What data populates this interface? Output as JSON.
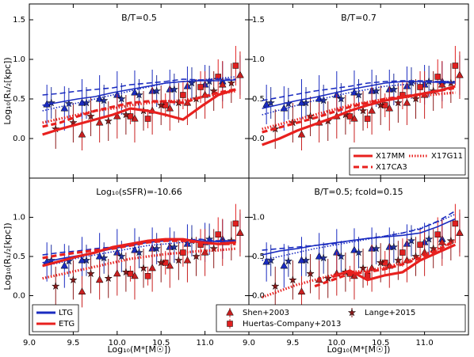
{
  "x_label": "Log₁₀(M*[M☉])",
  "y_label": "Log₁₀(R₁/₂[kpc])",
  "observations": [
    {
      "name": "Shen+2003",
      "marker": "triangle",
      "groups": [
        {
          "color": "#1a2bc0",
          "x": [
            9.2,
            9.4,
            9.6,
            9.8,
            10.0,
            10.2,
            10.4,
            10.6,
            10.8,
            11.0,
            11.2,
            11.4
          ],
          "values": [
            0.43,
            0.38,
            0.45,
            0.5,
            0.55,
            0.58,
            0.6,
            0.62,
            0.66,
            0.68,
            0.72,
            0.8
          ],
          "errors": [
            0.25,
            0.28,
            0.3,
            0.3,
            0.3,
            0.28,
            0.27,
            0.25,
            0.25,
            0.25,
            0.25,
            0.25
          ]
        },
        {
          "color": "#c82020",
          "x": [
            9.6,
            9.8,
            10.0,
            10.2,
            10.4,
            10.6,
            10.8,
            11.0,
            11.2,
            11.4
          ],
          "values": [
            0.05,
            0.2,
            0.28,
            0.25,
            0.35,
            0.38,
            0.45,
            0.55,
            0.68,
            0.8
          ],
          "errors": [
            0.2,
            0.25,
            0.28,
            0.3,
            0.3,
            0.28,
            0.28,
            0.3,
            0.3,
            0.3
          ]
        }
      ]
    },
    {
      "name": "Huertas-Company+2013",
      "marker": "square",
      "groups": [
        {
          "color": "#e02020",
          "x": [
            10.15,
            10.35,
            10.55,
            10.75,
            10.95,
            11.15,
            11.35
          ],
          "values": [
            0.28,
            0.25,
            0.42,
            0.55,
            0.65,
            0.78,
            0.92
          ],
          "errors": [
            0.1,
            0.12,
            0.15,
            0.18,
            0.2,
            0.22,
            0.25
          ]
        }
      ]
    },
    {
      "name": "Lange+2015",
      "marker": "star",
      "groups": [
        {
          "color": "#2030a0",
          "x": [
            9.25,
            9.45,
            9.65,
            9.85,
            10.05,
            10.25,
            10.45,
            10.65,
            10.85,
            11.05
          ],
          "values": [
            0.45,
            0.44,
            0.45,
            0.48,
            0.5,
            0.55,
            0.6,
            0.62,
            0.7,
            0.72
          ],
          "errors": [
            0.2,
            0.2,
            0.2,
            0.2,
            0.2,
            0.2,
            0.2,
            0.2,
            0.2,
            0.2
          ]
        },
        {
          "color": "#8b1a1a",
          "x": [
            9.3,
            9.5,
            9.7,
            9.9,
            10.1,
            10.3,
            10.5,
            10.7,
            10.9,
            11.1,
            11.3
          ],
          "values": [
            0.12,
            0.2,
            0.28,
            0.22,
            0.3,
            0.35,
            0.42,
            0.45,
            0.5,
            0.6,
            0.7
          ],
          "errors": [
            0.25,
            0.25,
            0.25,
            0.25,
            0.25,
            0.25,
            0.25,
            0.25,
            0.25,
            0.25,
            0.25
          ]
        }
      ]
    }
  ],
  "chart_data": [
    {
      "type": "line",
      "title": "B/T=0.5",
      "xlim": [
        9.0,
        11.5
      ],
      "ylim": [
        -0.5,
        1.7
      ],
      "xticks": [
        {
          "value": 9.0,
          "label": "9.0"
        },
        9.5,
        {
          "value": 10.0,
          "label": "10.0"
        },
        10.5,
        {
          "value": 11.0,
          "label": "11.0"
        }
      ],
      "yticks": [
        {
          "value": 0,
          "label": "0.0"
        },
        0.5,
        {
          "value": 1,
          "label": "1.0"
        },
        1.5
      ],
      "x": [
        9.15,
        9.35,
        9.55,
        9.75,
        9.95,
        10.15,
        10.35,
        10.55,
        10.75,
        10.95,
        11.15,
        11.35
      ],
      "series": [
        {
          "color": "#1a2bc0",
          "style": "solid",
          "values": [
            0.42,
            0.46,
            0.5,
            0.53,
            0.58,
            0.62,
            0.66,
            0.7,
            0.72,
            0.73,
            0.73,
            0.74
          ]
        },
        {
          "color": "#1a2bc0",
          "style": "dashed",
          "values": [
            0.55,
            0.57,
            0.6,
            0.62,
            0.64,
            0.68,
            0.7,
            0.72,
            0.75,
            0.74,
            0.75,
            0.75
          ]
        },
        {
          "color": "#1a2bc0",
          "style": "dotted",
          "values": [
            0.35,
            0.4,
            0.45,
            0.5,
            0.55,
            0.6,
            0.65,
            0.7,
            0.72,
            0.74,
            0.76,
            0.78
          ]
        },
        {
          "color": "#e8201e",
          "style": "solid",
          "values": [
            0.05,
            0.12,
            0.18,
            0.24,
            0.3,
            0.38,
            0.35,
            0.3,
            0.24,
            0.4,
            0.55,
            0.62
          ]
        },
        {
          "color": "#e8201e",
          "style": "dashed",
          "values": [
            0.15,
            0.2,
            0.28,
            0.35,
            0.4,
            0.45,
            0.47,
            0.47,
            0.45,
            0.52,
            0.58,
            0.62
          ]
        },
        {
          "color": "#e8201e",
          "style": "dotted",
          "values": [
            0.2,
            0.25,
            0.3,
            0.35,
            0.38,
            0.42,
            0.45,
            0.47,
            0.48,
            0.52,
            0.56,
            0.6
          ]
        }
      ]
    },
    {
      "type": "line",
      "title": "B/T=0.7",
      "xlim": [
        9.0,
        11.5
      ],
      "ylim": [
        -0.5,
        1.7
      ],
      "xticks": [
        {
          "value": 9.0,
          "label": "9.0"
        },
        9.5,
        {
          "value": 10.0,
          "label": "10.0"
        },
        10.5,
        {
          "value": 11.0,
          "label": "11.0"
        }
      ],
      "yticks": [
        {
          "value": 0,
          "label": "0.0"
        },
        0.5,
        {
          "value": 1,
          "label": "1.0"
        },
        1.5
      ],
      "x": [
        9.15,
        9.35,
        9.55,
        9.75,
        9.95,
        10.15,
        10.35,
        10.55,
        10.75,
        10.95,
        11.15,
        11.35
      ],
      "series": [
        {
          "color": "#1a2bc0",
          "style": "solid",
          "values": [
            0.38,
            0.43,
            0.48,
            0.52,
            0.57,
            0.62,
            0.66,
            0.7,
            0.72,
            0.72,
            0.71,
            0.7
          ]
        },
        {
          "color": "#1a2bc0",
          "style": "dashed",
          "values": [
            0.48,
            0.52,
            0.56,
            0.6,
            0.63,
            0.66,
            0.7,
            0.72,
            0.73,
            0.73,
            0.72,
            0.72
          ]
        },
        {
          "color": "#1a2bc0",
          "style": "dotted",
          "values": [
            0.3,
            0.36,
            0.42,
            0.48,
            0.53,
            0.58,
            0.62,
            0.66,
            0.68,
            0.7,
            0.72,
            0.72
          ]
        },
        {
          "color": "#e8201e",
          "style": "solid",
          "values": [
            -0.08,
            0.0,
            0.1,
            0.18,
            0.26,
            0.35,
            0.42,
            0.48,
            0.52,
            0.56,
            0.6,
            0.66
          ]
        },
        {
          "color": "#e8201e",
          "style": "dashed",
          "values": [
            0.08,
            0.14,
            0.2,
            0.26,
            0.33,
            0.4,
            0.45,
            0.5,
            0.53,
            0.56,
            0.6,
            0.64
          ]
        },
        {
          "color": "#e8201e",
          "style": "dotted",
          "values": [
            0.12,
            0.18,
            0.24,
            0.3,
            0.36,
            0.42,
            0.46,
            0.5,
            0.52,
            0.54,
            0.56,
            0.58
          ]
        }
      ],
      "legend": {
        "corner": "lower right",
        "entries": [
          {
            "label": "X17MM",
            "color": "#e8201e",
            "style": "solid"
          },
          {
            "label": "X17CA3",
            "color": "#e8201e",
            "style": "dashed"
          },
          {
            "label": "X17G11",
            "color": "#e8201e",
            "style": "dotted"
          }
        ]
      }
    },
    {
      "type": "line",
      "title": "Log₁₀(sSFR)=-10.66",
      "xlim": [
        9.0,
        11.5
      ],
      "ylim": [
        -0.5,
        1.5
      ],
      "xticks": [
        {
          "value": 9.0,
          "label": "9.0"
        },
        9.5,
        {
          "value": 10.0,
          "label": "10.0"
        },
        10.5,
        {
          "value": 11.0,
          "label": "11.0"
        }
      ],
      "yticks": [
        {
          "value": 0,
          "label": "0.0"
        },
        0.5,
        {
          "value": 1,
          "label": "1.0"
        }
      ],
      "x": [
        9.15,
        9.35,
        9.55,
        9.75,
        9.95,
        10.15,
        10.35,
        10.55,
        10.75,
        10.95,
        11.15,
        11.35
      ],
      "series": [
        {
          "color": "#1a2bc0",
          "style": "solid",
          "values": [
            0.42,
            0.47,
            0.51,
            0.55,
            0.6,
            0.64,
            0.68,
            0.7,
            0.72,
            0.7,
            0.69,
            0.7
          ]
        },
        {
          "color": "#1a2bc0",
          "style": "dashed",
          "values": [
            0.52,
            0.55,
            0.57,
            0.6,
            0.62,
            0.65,
            0.68,
            0.7,
            0.71,
            0.72,
            0.7,
            0.7
          ]
        },
        {
          "color": "#1a2bc0",
          "style": "dotted",
          "values": [
            0.38,
            0.42,
            0.48,
            0.52,
            0.56,
            0.6,
            0.64,
            0.66,
            0.68,
            0.68,
            0.7,
            0.7
          ]
        },
        {
          "color": "#e8201e",
          "style": "solid",
          "values": [
            0.38,
            0.44,
            0.5,
            0.55,
            0.62,
            0.66,
            0.7,
            0.72,
            0.72,
            0.68,
            0.66,
            0.68
          ]
        },
        {
          "color": "#e8201e",
          "style": "dashed",
          "values": [
            0.48,
            0.52,
            0.55,
            0.58,
            0.6,
            0.64,
            0.68,
            0.7,
            0.7,
            0.68,
            0.66,
            0.66
          ]
        },
        {
          "color": "#e8201e",
          "style": "dotted",
          "values": [
            0.22,
            0.27,
            0.32,
            0.37,
            0.42,
            0.47,
            0.5,
            0.53,
            0.55,
            0.57,
            0.58,
            0.6
          ]
        }
      ],
      "legend": {
        "corner": "lower left",
        "entries": [
          {
            "label": "LTG",
            "color": "#1a2bc0",
            "style": "solid"
          },
          {
            "label": "ETG",
            "color": "#e8201e",
            "style": "solid"
          }
        ]
      }
    },
    {
      "type": "line",
      "title": "B/T=0.5; fcold=0.15",
      "xlim": [
        9.0,
        11.5
      ],
      "ylim": [
        -0.5,
        1.5
      ],
      "xticks": [
        {
          "value": 9.0,
          "label": "9.0"
        },
        9.5,
        {
          "value": 10.0,
          "label": "10.0"
        },
        10.5,
        {
          "value": 11.0,
          "label": "11.0"
        }
      ],
      "yticks": [
        {
          "value": 0,
          "label": "0.0"
        },
        0.5,
        {
          "value": 1,
          "label": "1.0"
        }
      ],
      "x": [
        9.15,
        9.35,
        9.55,
        9.75,
        9.95,
        10.15,
        10.35,
        10.55,
        10.75,
        10.95,
        11.15,
        11.35
      ],
      "series": [
        {
          "color": "#1a2bc0",
          "style": "solid",
          "values": [
            0.52,
            0.57,
            0.6,
            0.64,
            0.67,
            0.7,
            0.73,
            0.75,
            0.77,
            0.8,
            0.88,
            0.98
          ]
        },
        {
          "color": "#1a2bc0",
          "style": "dashed",
          "values": [
            0.58,
            0.6,
            0.62,
            0.64,
            0.66,
            0.7,
            0.73,
            0.76,
            0.8,
            0.85,
            0.95,
            1.08
          ]
        },
        {
          "color": "#1a2bc0",
          "style": "dotted",
          "values": [
            0.45,
            0.5,
            0.55,
            0.6,
            0.64,
            0.68,
            0.72,
            0.76,
            0.8,
            0.86,
            0.94,
            1.04
          ]
        },
        {
          "color": "#e8201e",
          "style": "solid",
          "values": [
            null,
            null,
            null,
            null,
            0.24,
            0.32,
            0.2,
            0.26,
            0.3,
            0.45,
            0.55,
            0.65
          ]
        },
        {
          "color": "#e8201e",
          "style": "dashed",
          "values": [
            null,
            null,
            null,
            0.12,
            0.2,
            0.28,
            0.3,
            0.34,
            0.4,
            0.48,
            0.58,
            0.7
          ]
        },
        {
          "color": "#e8201e",
          "style": "dotted",
          "values": [
            -0.02,
            0.06,
            0.14,
            0.2,
            0.26,
            0.3,
            0.32,
            0.36,
            0.42,
            0.5,
            0.6,
            0.7
          ]
        }
      ],
      "observations_legend": "lower right"
    }
  ]
}
